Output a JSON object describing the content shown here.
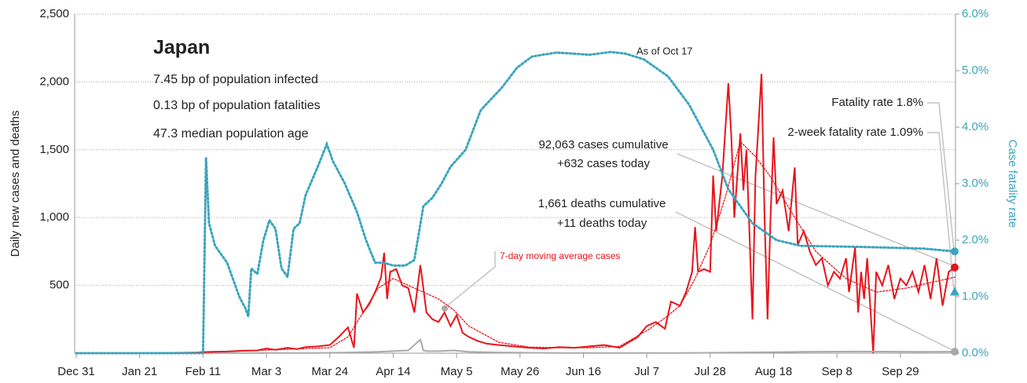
{
  "chart_data": {
    "type": "line",
    "title": "Japan",
    "subtitle_lines": [
      "7.45 bp of population infected",
      "0.13 bp of population fatalities",
      "47.3 median population age"
    ],
    "ylabel": "Daily new cases and deaths",
    "y2label": "Case fatality rate",
    "xlim": [
      0,
      291
    ],
    "xticks": [
      {
        "value": 0,
        "label": "Dec 31"
      },
      {
        "value": 21,
        "label": "Jan 21"
      },
      {
        "value": 42,
        "label": "Feb 11"
      },
      {
        "value": 63,
        "label": "Mar 3"
      },
      {
        "value": 84,
        "label": "Mar 24"
      },
      {
        "value": 105,
        "label": "Apr 14"
      },
      {
        "value": 126,
        "label": "May 5"
      },
      {
        "value": 147,
        "label": "May 26"
      },
      {
        "value": 168,
        "label": "Jun 16"
      },
      {
        "value": 189,
        "label": "Jul 7"
      },
      {
        "value": 210,
        "label": "Jul 28"
      },
      {
        "value": 231,
        "label": "Aug 18"
      },
      {
        "value": 252,
        "label": "Sep 8"
      },
      {
        "value": 273,
        "label": "Sep 29"
      }
    ],
    "ylim": [
      0,
      2500
    ],
    "yticks": [
      500,
      {
        "value": 1000,
        "label": "1,000"
      },
      {
        "value": 1500,
        "label": "1,500"
      },
      {
        "value": 2000,
        "label": "2,000"
      },
      {
        "value": 2500,
        "label": "2,500"
      }
    ],
    "y2lim": [
      0,
      6
    ],
    "y2ticks": [
      {
        "value": 0,
        "label": "0.0%"
      },
      {
        "value": 1,
        "label": "1.0%"
      },
      {
        "value": 2,
        "label": "2.0%"
      },
      {
        "value": 3,
        "label": "3.0%"
      },
      {
        "value": 4,
        "label": "4.0%"
      },
      {
        "value": 5,
        "label": "5.0%"
      },
      {
        "value": 6,
        "label": "6.0%"
      }
    ],
    "grid": true,
    "series": [
      {
        "name": "Daily cases",
        "color": "#e8141b",
        "style": "solid",
        "x": [
          0,
          10,
          20,
          30,
          40,
          42,
          45,
          50,
          55,
          60,
          63,
          66,
          70,
          73,
          76,
          80,
          84,
          87,
          90,
          92,
          93,
          95,
          97,
          99,
          101,
          102,
          103,
          104,
          106,
          108,
          110,
          112,
          114,
          116,
          118,
          120,
          122,
          124,
          126,
          128,
          130,
          133,
          136,
          140,
          145,
          150,
          155,
          160,
          165,
          170,
          175,
          180,
          183,
          186,
          189,
          192,
          195,
          197,
          200,
          202,
          204,
          205,
          206,
          208,
          210,
          211,
          212,
          213,
          214,
          216,
          217,
          218,
          220,
          221,
          222,
          223,
          224,
          225,
          227,
          228,
          229,
          230,
          231,
          232,
          234,
          236,
          238,
          239,
          241,
          243,
          245,
          247,
          249,
          251,
          253,
          255,
          256,
          258,
          259,
          260,
          261,
          262,
          264,
          265,
          267,
          269,
          271,
          273,
          275,
          277,
          279,
          281,
          283,
          285,
          287,
          289,
          291
        ],
        "values": [
          0,
          0,
          0,
          2,
          5,
          8,
          10,
          12,
          18,
          20,
          35,
          25,
          40,
          30,
          45,
          50,
          60,
          120,
          190,
          40,
          440,
          300,
          360,
          450,
          560,
          740,
          400,
          600,
          620,
          500,
          480,
          300,
          650,
          300,
          250,
          230,
          300,
          200,
          280,
          150,
          120,
          90,
          70,
          60,
          50,
          40,
          35,
          45,
          40,
          50,
          60,
          40,
          80,
          120,
          200,
          230,
          180,
          380,
          350,
          450,
          600,
          930,
          600,
          620,
          600,
          1310,
          900,
          1100,
          1300,
          1990,
          1600,
          1000,
          1620,
          1200,
          1500,
          900,
          250,
          1300,
          2060,
          1000,
          250,
          1000,
          1590,
          1100,
          1200,
          900,
          1370,
          800,
          900,
          750,
          650,
          700,
          500,
          600,
          550,
          700,
          450,
          780,
          300,
          600,
          400,
          700,
          0,
          600,
          500,
          650,
          400,
          550,
          500,
          600,
          450,
          650,
          400,
          700,
          350,
          600,
          632
        ]
      },
      {
        "name": "Daily deaths",
        "color": "#aaaaaa",
        "style": "solid",
        "x": [
          0,
          40,
          60,
          80,
          90,
          100,
          105,
          110,
          114,
          115,
          116,
          120,
          125,
          130,
          140,
          160,
          180,
          200,
          220,
          240,
          260,
          280,
          291
        ],
        "values": [
          0,
          0,
          1,
          2,
          5,
          10,
          15,
          20,
          100,
          20,
          15,
          15,
          20,
          10,
          5,
          2,
          1,
          1,
          5,
          10,
          12,
          10,
          11
        ]
      },
      {
        "name": "7-day moving average cases",
        "color": "#e8141b",
        "style": "dotted",
        "x": [
          0,
          40,
          60,
          84,
          90,
          95,
          100,
          105,
          110,
          115,
          120,
          125,
          130,
          140,
          150,
          160,
          170,
          180,
          190,
          195,
          200,
          205,
          210,
          215,
          220,
          225,
          230,
          238,
          245,
          255,
          265,
          275,
          283,
          291
        ],
        "values": [
          0,
          2,
          20,
          40,
          120,
          300,
          480,
          550,
          500,
          450,
          400,
          320,
          200,
          80,
          45,
          40,
          40,
          50,
          180,
          260,
          350,
          550,
          800,
          1150,
          1560,
          1450,
          1300,
          1000,
          750,
          550,
          450,
          480,
          520,
          560
        ]
      },
      {
        "name": "Case fatality rate",
        "color": "#3aa5bd",
        "style": "dotted",
        "axis": "y2",
        "x": [
          0,
          42,
          43,
          44,
          46,
          50,
          54,
          56,
          57,
          58,
          60,
          62,
          64,
          66,
          68,
          70,
          72,
          74,
          76,
          80,
          83,
          85,
          89,
          93,
          96,
          99,
          102,
          105,
          109,
          112,
          115,
          118,
          121,
          124,
          129,
          134,
          141,
          146,
          151,
          159,
          165,
          170,
          177,
          182,
          188,
          196,
          203,
          211,
          216,
          224,
          232,
          240,
          260,
          281,
          291
        ],
        "values": [
          0,
          0,
          3.45,
          2.3,
          1.9,
          1.6,
          1.0,
          0.8,
          0.65,
          1.5,
          1.4,
          2.0,
          2.35,
          2.2,
          1.5,
          1.35,
          2.2,
          2.3,
          2.8,
          3.3,
          3.7,
          3.4,
          3.0,
          2.5,
          2.0,
          1.6,
          1.6,
          1.55,
          1.55,
          1.65,
          2.6,
          2.75,
          3.0,
          3.3,
          3.6,
          4.3,
          4.7,
          5.05,
          5.25,
          5.32,
          5.3,
          5.28,
          5.33,
          5.3,
          5.2,
          4.9,
          4.4,
          3.6,
          2.9,
          2.3,
          2.0,
          1.9,
          1.88,
          1.85,
          1.8
        ]
      }
    ],
    "two_week_fatality_rate": {
      "value": 1.09,
      "label": "2-week fatality rate 1.09%"
    },
    "annotations": {
      "as_of": "As of Oct 17",
      "fatality_rate": "Fatality rate 1.8%",
      "cases_cumulative": "92,063 cases cumulative",
      "cases_today": "+632 cases today",
      "deaths_cumulative": "1,661 deaths cumulative",
      "deaths_today": "+11 deaths today"
    }
  }
}
